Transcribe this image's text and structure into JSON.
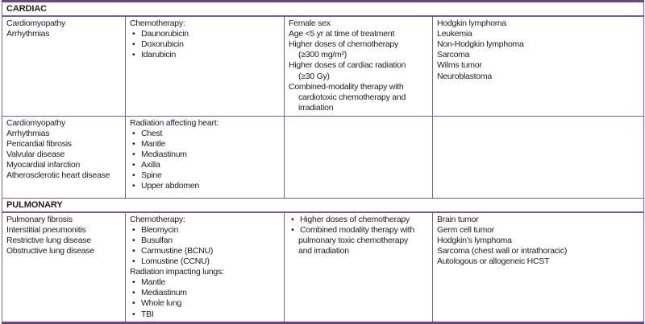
{
  "colors": {
    "border": "#7b5c96",
    "border_heavy": "#68477f",
    "text": "#1d1d1d",
    "background": "#ffffff"
  },
  "icons": {
    "bullet": "•"
  },
  "table": {
    "columns": [
      "late-effects",
      "treatment-causes",
      "risk-factors",
      "associated-cancers"
    ],
    "sections": [
      {
        "header": "CARDIAC",
        "rows": [
          {
            "cells": [
              {
                "lines": [
                  {
                    "t": "plain",
                    "text": "Cardiomyopathy"
                  },
                  {
                    "t": "plain",
                    "text": "Arrhythmias"
                  }
                ]
              },
              {
                "lines": [
                  {
                    "t": "label",
                    "text": "Chemotherapy:"
                  },
                  {
                    "t": "bullet",
                    "text": "Daunorubicin"
                  },
                  {
                    "t": "bullet",
                    "text": "Doxorubicin"
                  },
                  {
                    "t": "bullet",
                    "text": "Idarubicin"
                  }
                ]
              },
              {
                "lines": [
                  {
                    "t": "plain",
                    "text": "Female sex"
                  },
                  {
                    "t": "plain",
                    "text": "Age <5 yr at time of treatment"
                  },
                  {
                    "t": "plain",
                    "text": "Higher doses of chemotherapy"
                  },
                  {
                    "t": "cont",
                    "text": "(≥300 mg/m²)"
                  },
                  {
                    "t": "plain",
                    "text": "Higher doses of cardiac radiation"
                  },
                  {
                    "t": "cont",
                    "text": "(≥30 Gy)"
                  },
                  {
                    "t": "plain",
                    "text": "Combined-modality therapy with"
                  },
                  {
                    "t": "cont",
                    "text": "cardiotoxic chemotherapy and"
                  },
                  {
                    "t": "cont",
                    "text": "irradiation"
                  }
                ]
              },
              {
                "lines": [
                  {
                    "t": "plain",
                    "text": "Hodgkin lymphoma"
                  },
                  {
                    "t": "plain",
                    "text": "Leukemia"
                  },
                  {
                    "t": "plain",
                    "text": "Non-Hodgkin lymphoma"
                  },
                  {
                    "t": "plain",
                    "text": "Sarcoma"
                  },
                  {
                    "t": "plain",
                    "text": "Wilms tumor"
                  },
                  {
                    "t": "plain",
                    "text": "Neuroblastoma"
                  }
                ]
              }
            ]
          },
          {
            "cells": [
              {
                "lines": [
                  {
                    "t": "plain",
                    "text": "Cardiomyopathy"
                  },
                  {
                    "t": "plain",
                    "text": "Arrhythmias"
                  },
                  {
                    "t": "plain",
                    "text": "Pericardial fibrosis"
                  },
                  {
                    "t": "plain",
                    "text": "Valvular disease"
                  },
                  {
                    "t": "plain",
                    "text": "Myocardial infarction"
                  },
                  {
                    "t": "plain",
                    "text": "Atherosclerotic heart disease"
                  }
                ]
              },
              {
                "lines": [
                  {
                    "t": "label",
                    "text": "Radiation affecting heart:"
                  },
                  {
                    "t": "bullet",
                    "text": "Chest"
                  },
                  {
                    "t": "bullet",
                    "text": "Mantle"
                  },
                  {
                    "t": "bullet",
                    "text": "Mediastinum"
                  },
                  {
                    "t": "bullet",
                    "text": "Axilla"
                  },
                  {
                    "t": "bullet",
                    "text": "Spine"
                  },
                  {
                    "t": "bullet",
                    "text": "Upper abdomen"
                  }
                ]
              },
              {
                "lines": []
              },
              {
                "lines": []
              }
            ]
          }
        ]
      },
      {
        "header": "PULMONARY",
        "rows": [
          {
            "cells": [
              {
                "lines": [
                  {
                    "t": "plain",
                    "text": "Pulmonary fibrosis"
                  },
                  {
                    "t": "plain",
                    "text": "Interstitial pneumonitis"
                  },
                  {
                    "t": "plain",
                    "text": "Restrictive lung disease"
                  },
                  {
                    "t": "plain",
                    "text": "Obstructive lung disease"
                  }
                ]
              },
              {
                "lines": [
                  {
                    "t": "label",
                    "text": "Chemotherapy:"
                  },
                  {
                    "t": "bullet",
                    "text": "Bleomycin"
                  },
                  {
                    "t": "bullet",
                    "text": "Busulfan"
                  },
                  {
                    "t": "bullet",
                    "text": "Carmustine (BCNU)"
                  },
                  {
                    "t": "bullet",
                    "text": "Lomustine (CCNU)"
                  },
                  {
                    "t": "label",
                    "text": "Radiation impacting lungs:"
                  },
                  {
                    "t": "bullet",
                    "text": "Mantle"
                  },
                  {
                    "t": "bullet",
                    "text": "Mediastinum"
                  },
                  {
                    "t": "bullet",
                    "text": "Whole lung"
                  },
                  {
                    "t": "bullet",
                    "text": "TBI"
                  }
                ]
              },
              {
                "lines": [
                  {
                    "t": "bullet",
                    "text": "Higher doses of chemotherapy"
                  },
                  {
                    "t": "bullet",
                    "text": "Combined modality therapy with"
                  },
                  {
                    "t": "cont",
                    "text": "pulmonary toxic chemotherapy"
                  },
                  {
                    "t": "cont",
                    "text": "and irradiation"
                  }
                ]
              },
              {
                "lines": [
                  {
                    "t": "plain",
                    "text": "Brain tumor"
                  },
                  {
                    "t": "plain",
                    "text": "Germ cell tumor"
                  },
                  {
                    "t": "plain",
                    "text": "Hodgkin’s lymphoma"
                  },
                  {
                    "t": "plain",
                    "text": "Sarcoma (chest wall or intrathoracic)"
                  },
                  {
                    "t": "plain",
                    "text": "Autologous or allogeneic HCST"
                  }
                ]
              }
            ]
          }
        ]
      }
    ]
  }
}
